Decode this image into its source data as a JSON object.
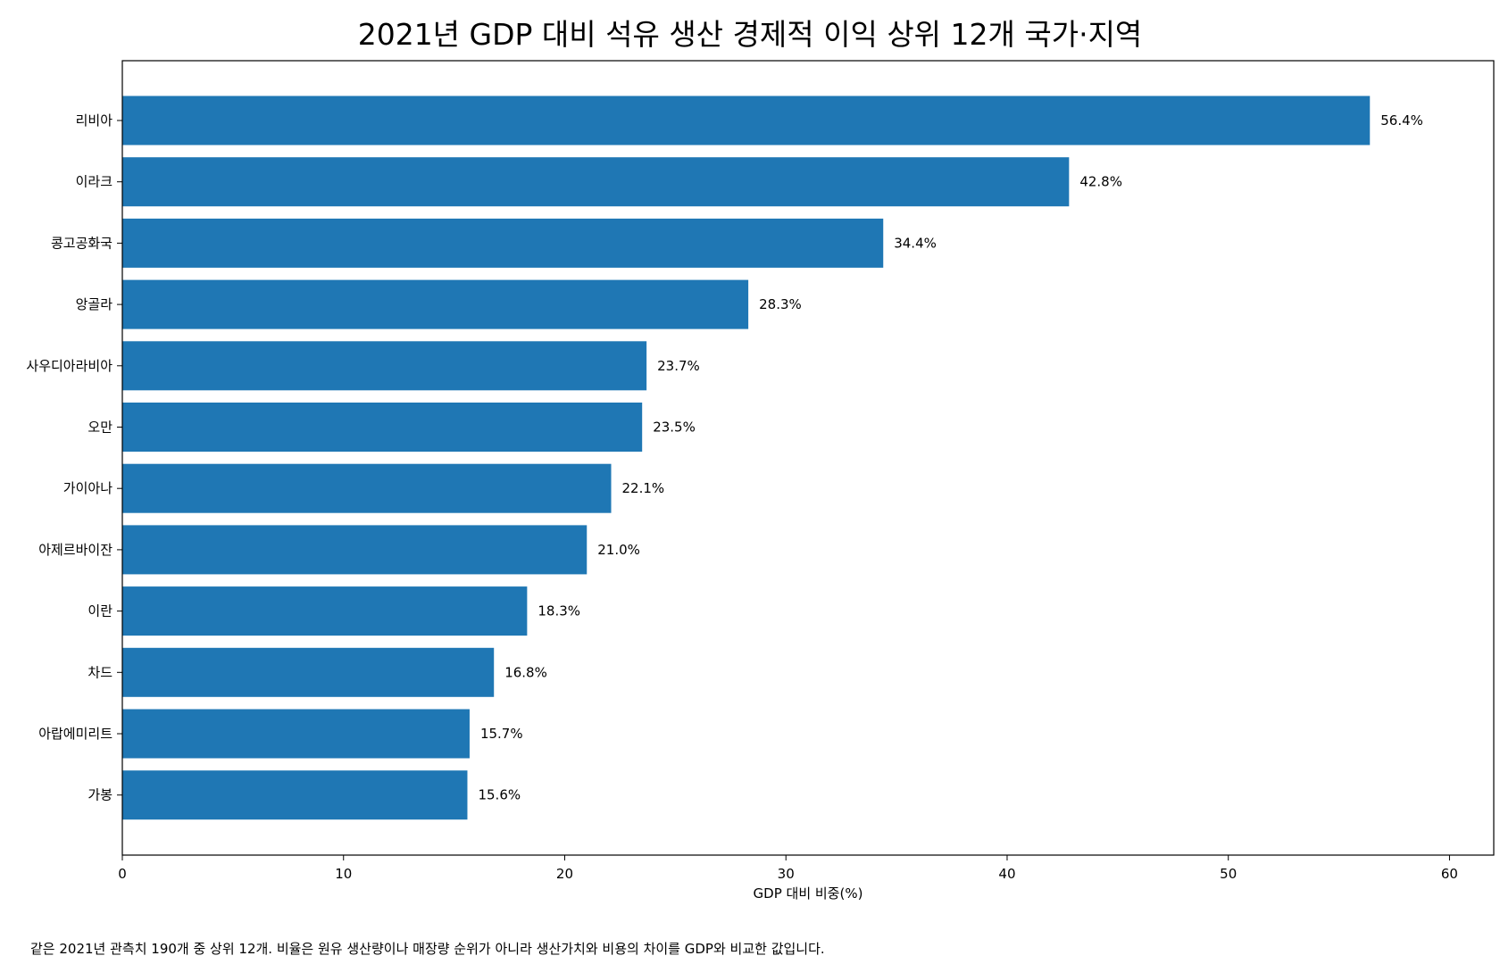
{
  "chart_data": {
    "type": "bar",
    "orientation": "horizontal",
    "title": "2021년 GDP 대비 석유 생산 경제적 이익 상위 12개 국가·지역",
    "xlabel": "GDP 대비 비중(%)",
    "ylabel": "",
    "xlim": [
      0,
      62
    ],
    "xticks": [
      0,
      10,
      20,
      30,
      40,
      50,
      60
    ],
    "grid": false,
    "bar_color": "#1f77b4",
    "categories": [
      "리비아",
      "이라크",
      "콩고공화국",
      "앙골라",
      "사우디아라비아",
      "오만",
      "가이아나",
      "아제르바이잔",
      "이란",
      "차드",
      "아랍에미리트",
      "가봉"
    ],
    "values": [
      56.4,
      42.8,
      34.4,
      28.3,
      23.7,
      23.5,
      22.1,
      21.0,
      18.3,
      16.8,
      15.7,
      15.6
    ],
    "value_labels": [
      "56.4%",
      "42.8%",
      "34.4%",
      "28.3%",
      "23.7%",
      "23.5%",
      "22.1%",
      "21.0%",
      "18.3%",
      "16.8%",
      "15.7%",
      "15.6%"
    ]
  },
  "note": "같은 2021년 관측치 190개 중 상위 12개. 비율은 원유 생산량이나 매장량 순위가 아니라 생산가치와 비용의 차이를 GDP와 비교한 값입니다."
}
